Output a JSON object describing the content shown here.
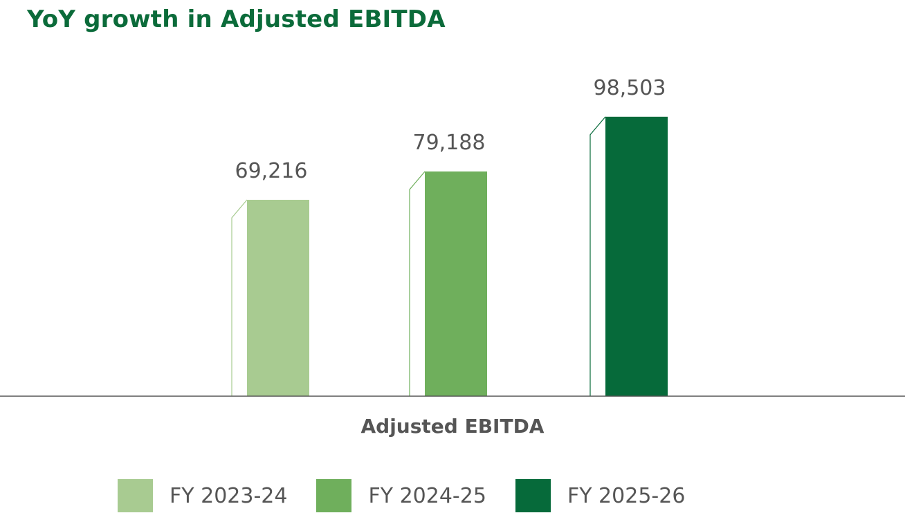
{
  "chart_data": {
    "type": "bar",
    "title": "YoY growth in Adjusted EBITDA",
    "categories": [
      "Adjusted EBITDA"
    ],
    "series": [
      {
        "name": "FY 2023-24",
        "values": [
          69216
        ],
        "color": "#a8cb91",
        "label": "69,216"
      },
      {
        "name": "FY 2024-25",
        "values": [
          79188
        ],
        "color": "#6faf5c",
        "label": "79,188"
      },
      {
        "name": "FY 2025-26",
        "values": [
          98503
        ],
        "color": "#066a3a",
        "label": "98,503"
      }
    ],
    "xlabel": "",
    "ylabel": "",
    "ylim": [
      0,
      100000
    ],
    "grid": false,
    "legend_position": "bottom",
    "title_color": "#0b6b3a",
    "text_color": "#555555",
    "axis_color": "#555555"
  }
}
